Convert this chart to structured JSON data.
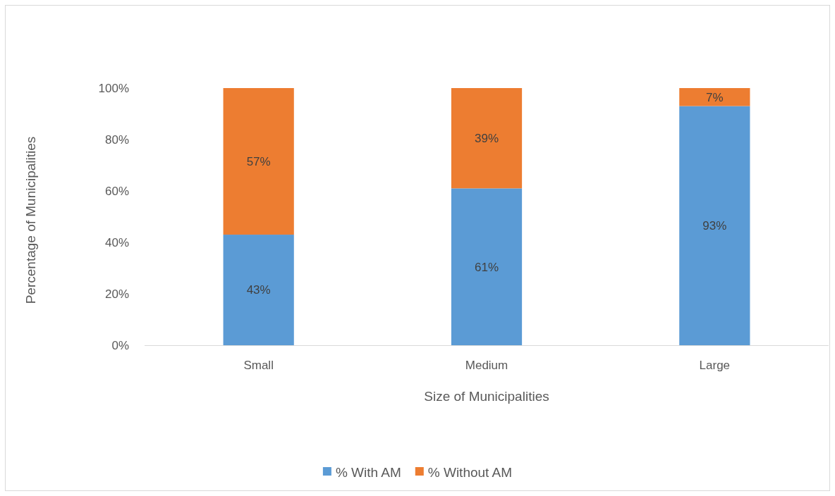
{
  "chart_data": {
    "type": "bar",
    "stacked": true,
    "xlabel": "Size of Municipalities",
    "ylabel": "Percentage of Municipalities",
    "categories": [
      "Small",
      "Medium",
      "Large"
    ],
    "series": [
      {
        "name": "% With AM",
        "color": "#5b9bd5",
        "values": [
          43,
          61,
          93
        ],
        "value_labels": [
          "43%",
          "61%",
          "93%"
        ]
      },
      {
        "name": "% Without AM",
        "color": "#ed7d31",
        "values": [
          57,
          39,
          7
        ],
        "value_labels": [
          "57%",
          "39%",
          "7%"
        ]
      }
    ],
    "ylim": [
      0,
      100
    ],
    "yticks": [
      {
        "value": 0,
        "label": "0%"
      },
      {
        "value": 20,
        "label": "20%"
      },
      {
        "value": 40,
        "label": "40%"
      },
      {
        "value": 60,
        "label": "60%"
      },
      {
        "value": 80,
        "label": "80%"
      },
      {
        "value": 100,
        "label": "100%"
      }
    ],
    "grid": false,
    "legend": "bottom"
  }
}
